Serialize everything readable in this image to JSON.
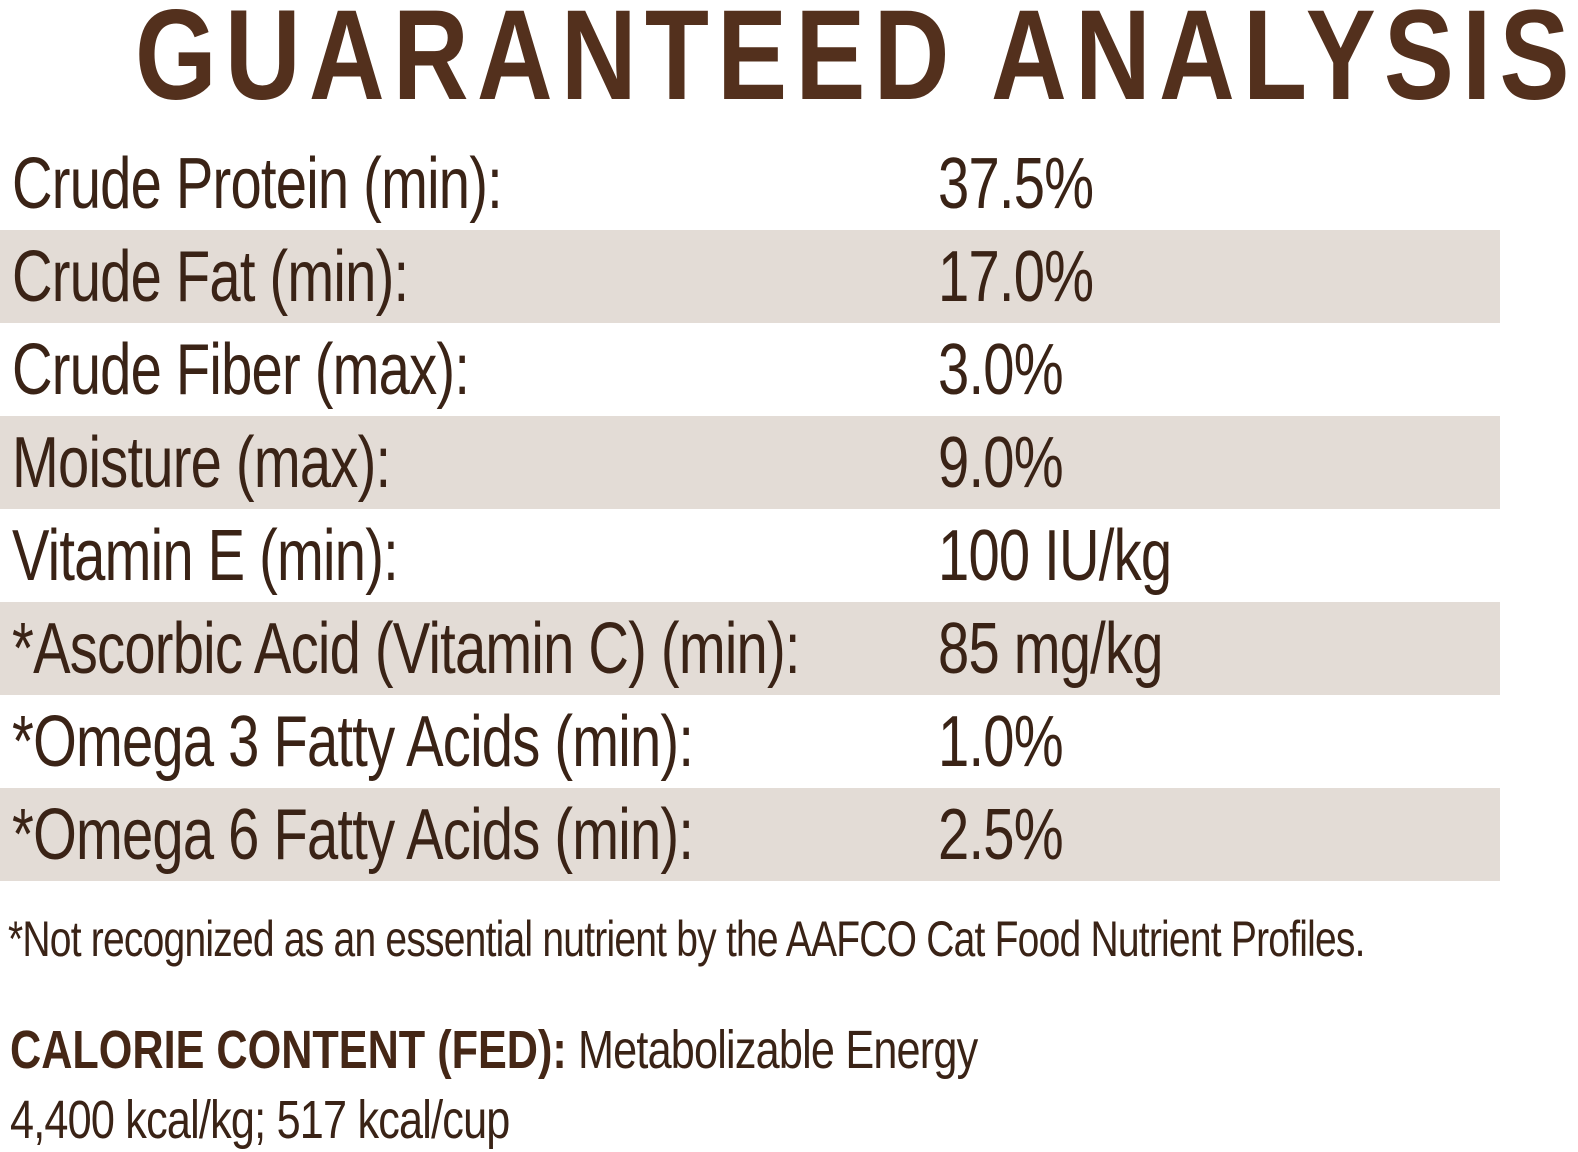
{
  "title": "GUARANTEED ANALYSIS",
  "colors": {
    "title_brown": "#53301d",
    "text_brown": "#3a2316",
    "stripe": "#e3dcd6",
    "background": "#ffffff"
  },
  "table": {
    "rows": [
      {
        "label": "Crude Protein (min):",
        "value": "37.5%"
      },
      {
        "label": "Crude Fat (min):",
        "value": "17.0%"
      },
      {
        "label": "Crude Fiber (max):",
        "value": "3.0%"
      },
      {
        "label": "Moisture (max):",
        "value": "9.0%"
      },
      {
        "label": "Vitamin E (min):",
        "value": "100 IU/kg"
      },
      {
        "label": "*Ascorbic Acid (Vitamin C) (min):",
        "value": "85 mg/kg"
      },
      {
        "label": "*Omega 3 Fatty Acids (min):",
        "value": "1.0%"
      },
      {
        "label": "*Omega 6 Fatty Acids (min):",
        "value": "2.5%"
      }
    ]
  },
  "footnote": "*Not recognized as an essential nutrient by the AAFCO Cat Food Nutrient Profiles.",
  "calorie": {
    "heading": "CALORIE CONTENT (FED):",
    "subheading": " Metabolizable Energy",
    "values": "4,400 kcal/kg; 517 kcal/cup"
  }
}
